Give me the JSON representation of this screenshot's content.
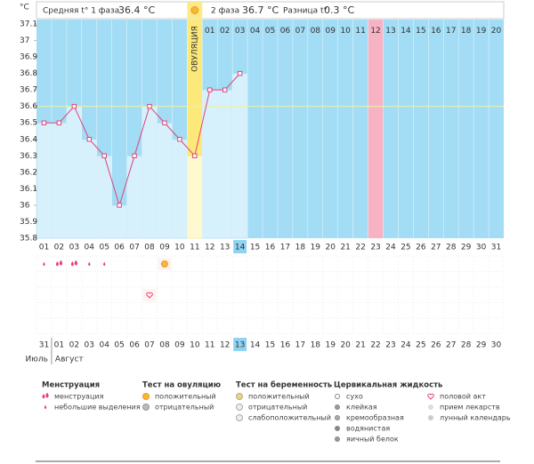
{
  "chart_data": {
    "type": "line",
    "y_label": "°C",
    "header": {
      "phase1": {
        "label": "Средняя t° 1 фаза",
        "value": "36.4 °C"
      },
      "phase2": {
        "label": "2 фаза",
        "value": "36.7 °C"
      },
      "difference": {
        "label": "Разница t°",
        "value": "0.3 °C"
      }
    },
    "ovulation_label": "ОВУЛЯЦИЯ",
    "ovulation_day": "11",
    "marked_day": "23",
    "current_day": "14",
    "categories": [
      "01",
      "02",
      "03",
      "04",
      "05",
      "06",
      "07",
      "08",
      "09",
      "10",
      "11",
      "12",
      "13",
      "14",
      "15",
      "16",
      "17",
      "18",
      "19",
      "20",
      "21",
      "22",
      "23",
      "24",
      "25",
      "26",
      "27",
      "28",
      "29",
      "30",
      "31"
    ],
    "post_ovulation_labels": [
      "01",
      "02",
      "03",
      "04",
      "05",
      "06",
      "07",
      "08",
      "09",
      "10",
      "11",
      "12",
      "13",
      "14",
      "15",
      "16",
      "17",
      "18",
      "19",
      "20"
    ],
    "series": [
      {
        "color": "#e0457b",
        "values": [
          36.5,
          36.5,
          36.6,
          36.4,
          36.3,
          36.0,
          36.3,
          36.6,
          36.5,
          36.4,
          36.3,
          36.7,
          36.7,
          36.8,
          null,
          null,
          null,
          null,
          null,
          null,
          null,
          null,
          null,
          null,
          null,
          null,
          null,
          null,
          null,
          null,
          null
        ]
      }
    ],
    "coverline": 36.6,
    "ylim": [
      35.8,
      37.1
    ],
    "yticks": [
      35.8,
      35.9,
      36,
      36.1,
      36.2,
      36.3,
      36.4,
      36.5,
      36.6,
      36.7,
      36.8,
      36.9,
      37,
      37.1
    ],
    "dates": [
      {
        "label": "31",
        "weekend": false
      },
      {
        "label": "01",
        "weekend": false
      },
      {
        "label": "02",
        "weekend": false
      },
      {
        "label": "03",
        "weekend": false
      },
      {
        "label": "04",
        "weekend": true
      },
      {
        "label": "05",
        "weekend": true
      },
      {
        "label": "06",
        "weekend": false
      },
      {
        "label": "07",
        "weekend": false
      },
      {
        "label": "08",
        "weekend": false
      },
      {
        "label": "09",
        "weekend": false
      },
      {
        "label": "10",
        "weekend": false
      },
      {
        "label": "11",
        "weekend": true
      },
      {
        "label": "12",
        "weekend": true
      },
      {
        "label": "13",
        "weekend": false
      },
      {
        "label": "14",
        "weekend": false
      },
      {
        "label": "15",
        "weekend": false
      },
      {
        "label": "16",
        "weekend": false
      },
      {
        "label": "17",
        "weekend": false
      },
      {
        "label": "18",
        "weekend": true
      },
      {
        "label": "19",
        "weekend": true
      },
      {
        "label": "20",
        "weekend": false
      },
      {
        "label": "21",
        "weekend": false
      },
      {
        "label": "22",
        "weekend": false
      },
      {
        "label": "23",
        "weekend": false
      },
      {
        "label": "24",
        "weekend": false
      },
      {
        "label": "25",
        "weekend": true
      },
      {
        "label": "26",
        "weekend": true
      },
      {
        "label": "27",
        "weekend": false
      },
      {
        "label": "28",
        "weekend": false
      },
      {
        "label": "29",
        "weekend": false
      },
      {
        "label": "30",
        "weekend": false
      }
    ],
    "current_date": "13",
    "months": [
      "Июль",
      "Август"
    ],
    "legend": [
      {
        "title": "Менструация",
        "items": [
          {
            "label": "менструация",
            "days": [
              "02",
              "03"
            ]
          },
          {
            "label": "небольшие выделения",
            "days": [
              "01",
              "04",
              "05"
            ]
          }
        ]
      },
      {
        "title": "Тест на овуляцию",
        "items": [
          {
            "label": "положительный",
            "days": [
              "09"
            ]
          },
          {
            "label": "отрицательный",
            "days": []
          }
        ]
      },
      {
        "title": "Тест на беременность",
        "items": [
          {
            "label": "положительный",
            "days": []
          },
          {
            "label": "отрицательный",
            "days": []
          },
          {
            "label": "слабоположительный",
            "days": []
          }
        ]
      },
      {
        "title": "Цервикальная жидкость",
        "items": [
          {
            "label": "сухо",
            "days": []
          },
          {
            "label": "клейкая",
            "days": []
          },
          {
            "label": "кремообразная",
            "days": []
          },
          {
            "label": "водянистая",
            "days": []
          },
          {
            "label": "яичный белок",
            "days": []
          }
        ]
      },
      {
        "items": [
          {
            "label": "половой акт",
            "days": [
              "08"
            ]
          },
          {
            "label": "прием лекарств",
            "days": []
          },
          {
            "label": "лунный календарь",
            "days": []
          }
        ]
      }
    ]
  }
}
